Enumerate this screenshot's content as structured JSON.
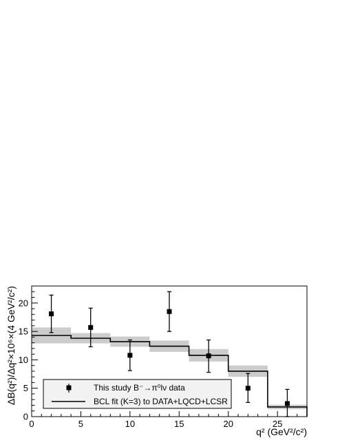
{
  "chart_data": {
    "type": "scatter",
    "title": "",
    "xlabel": "q² (GeV²/c²)",
    "ylabel": "ΔB(q²)/Δq²×10⁶×(4 GeV²/c²)",
    "xlim": [
      0,
      28
    ],
    "ylim": [
      0,
      23
    ],
    "x_ticks": [
      0,
      5,
      10,
      15,
      20,
      25
    ],
    "y_ticks": [
      0,
      5,
      10,
      15,
      20
    ],
    "grid": false,
    "legend_position": "bottom-left",
    "series": [
      {
        "name": "This study B⁻→π⁰lν data",
        "kind": "points-with-errors",
        "x": [
          2,
          6,
          10,
          14,
          18,
          22,
          26
        ],
        "y": [
          18.1,
          15.7,
          10.8,
          18.5,
          10.7,
          5.0,
          2.3
        ],
        "yerr_low": [
          3.3,
          3.4,
          2.7,
          3.5,
          2.9,
          2.5,
          2.4
        ],
        "yerr_high": [
          3.3,
          3.4,
          2.7,
          3.5,
          2.8,
          2.6,
          2.5
        ],
        "color": "#000000"
      },
      {
        "name": "BCL fit (K=3) to DATA+LQCD+LCSR",
        "kind": "step",
        "bin_edges": [
          0,
          4,
          8,
          12,
          16,
          20,
          24,
          28
        ],
        "values": [
          14.3,
          13.8,
          13.2,
          12.4,
          10.8,
          8.0,
          1.7
        ],
        "band_low": [
          12.9,
          12.9,
          12.3,
          11.4,
          9.7,
          7.0,
          1.3
        ],
        "band_high": [
          15.7,
          14.7,
          14.1,
          13.4,
          11.9,
          9.0,
          2.1
        ],
        "color": "#000000",
        "band_color": "#cccccc"
      }
    ]
  }
}
